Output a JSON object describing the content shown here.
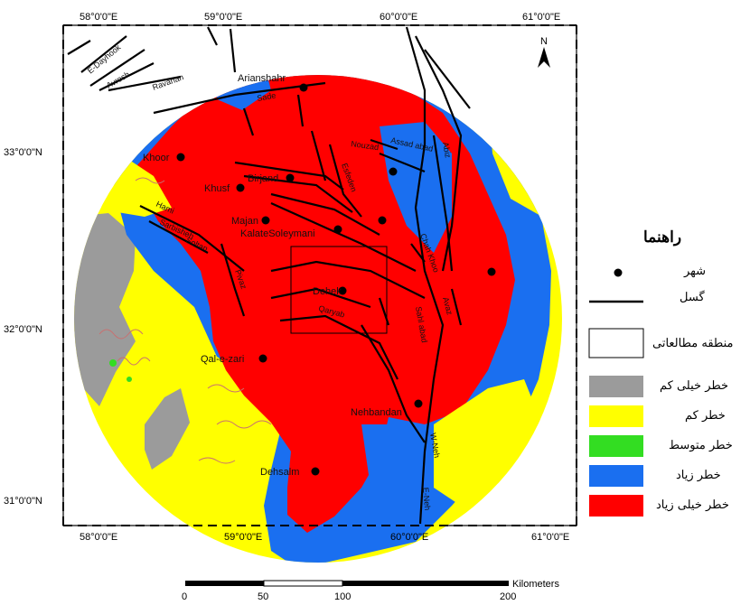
{
  "map": {
    "lon_labels": [
      "58°0'0\"E",
      "59°0'0\"E",
      "60°0'0\"E",
      "61°0'0\"E"
    ],
    "lat_labels": [
      "33°0'0\"N",
      "32°0'0\"N",
      "31°0'0\"N"
    ],
    "north_arrow": "N",
    "study_area_symbol": "rectangle",
    "colors": {
      "very_low": "#9b9b9b",
      "low": "#ffff00",
      "medium": "#33dd22",
      "high": "#1a6ff0",
      "very_high": "#ff0000",
      "fault": "#000000",
      "outline": "#c87070"
    }
  },
  "cities": [
    {
      "name": "Arianshahr"
    },
    {
      "name": "Khoor"
    },
    {
      "name": "Birjand"
    },
    {
      "name": "Khusf"
    },
    {
      "name": "Majan"
    },
    {
      "name": "KalateSoleymani"
    },
    {
      "name": "Dehek"
    },
    {
      "name": "Qal-e-zari"
    },
    {
      "name": "Nehbandan"
    },
    {
      "name": "Dehsalm"
    }
  ],
  "faults": [
    {
      "name": "E-Dayhook"
    },
    {
      "name": "Avrosh"
    },
    {
      "name": "Ravanan"
    },
    {
      "name": "Sade"
    },
    {
      "name": "Nouzad"
    },
    {
      "name": "Assad abad"
    },
    {
      "name": "Abiz"
    },
    {
      "name": "Esfeden"
    },
    {
      "name": "Hami"
    },
    {
      "name": "Sarbisheh"
    },
    {
      "name": "Soltan"
    },
    {
      "name": "Pivaz"
    },
    {
      "name": "Qaryab"
    },
    {
      "name": "Chah Khoo"
    },
    {
      "name": "Avaz"
    },
    {
      "name": "Sahl abad"
    },
    {
      "name": "W-Neh"
    },
    {
      "name": "E-Neh"
    }
  ],
  "legend": {
    "title": "راهنما",
    "city": "شهر",
    "fault": "گسل",
    "study_area": "منطقه مطالعاتی",
    "very_low": "خطر خیلی کم",
    "low": "خطر کم",
    "medium": "خطر متوسط",
    "high": "خطر زیاد",
    "very_high": "خطر خیلی زیاد"
  },
  "scale_bar": {
    "unit": "Kilometers",
    "ticks": [
      "0",
      "50",
      "100",
      "200"
    ]
  }
}
